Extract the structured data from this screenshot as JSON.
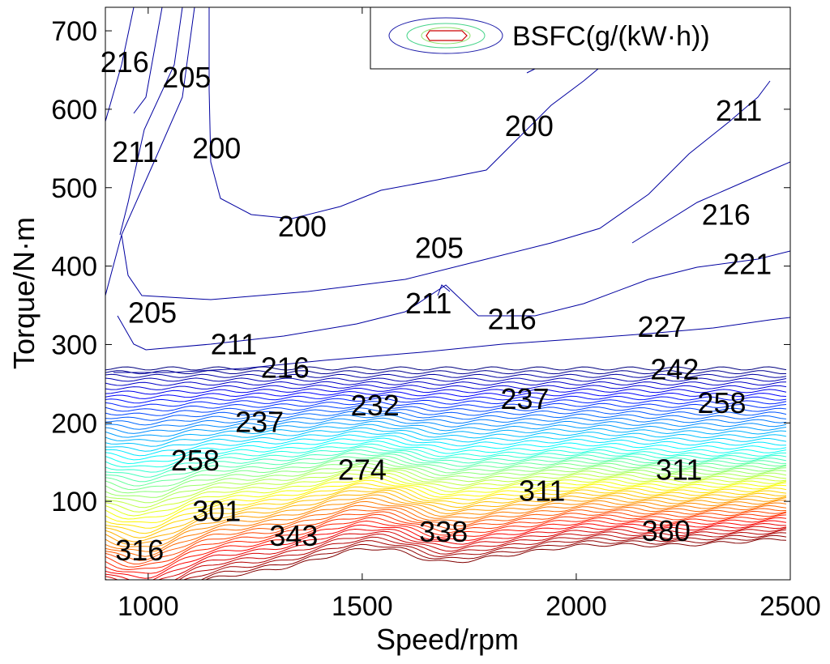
{
  "chart_data": {
    "type": "contour",
    "title": "",
    "xlabel": "Speed/rpm",
    "ylabel": "Torque/N·m",
    "xlim": [
      900,
      2500
    ],
    "ylim": [
      0,
      730
    ],
    "x_ticks": [
      1000,
      1500,
      2000,
      2500
    ],
    "y_ticks": [
      100,
      200,
      300,
      400,
      500,
      600,
      700
    ],
    "grid": false,
    "legend": {
      "position": "top-right",
      "label": "BSFC(g/(kW·h))"
    },
    "contour_labels": [
      {
        "value": "216",
        "speed": 945,
        "torque": 660
      },
      {
        "value": "205",
        "speed": 1090,
        "torque": 640
      },
      {
        "value": "211",
        "speed": 970,
        "torque": 545
      },
      {
        "value": "200",
        "speed": 1160,
        "torque": 550
      },
      {
        "value": "200",
        "speed": 1360,
        "torque": 450
      },
      {
        "value": "200",
        "speed": 1890,
        "torque": 578
      },
      {
        "value": "211",
        "speed": 2380,
        "torque": 598
      },
      {
        "value": "216",
        "speed": 2350,
        "torque": 465
      },
      {
        "value": "205",
        "speed": 1680,
        "torque": 423
      },
      {
        "value": "221",
        "speed": 2400,
        "torque": 402
      },
      {
        "value": "205",
        "speed": 1010,
        "torque": 340
      },
      {
        "value": "211",
        "speed": 1655,
        "torque": 352
      },
      {
        "value": "216",
        "speed": 1850,
        "torque": 332
      },
      {
        "value": "227",
        "speed": 2200,
        "torque": 322
      },
      {
        "value": "211",
        "speed": 1200,
        "torque": 300
      },
      {
        "value": "216",
        "speed": 1320,
        "torque": 270
      },
      {
        "value": "242",
        "speed": 2230,
        "torque": 268
      },
      {
        "value": "232",
        "speed": 1530,
        "torque": 222
      },
      {
        "value": "237",
        "speed": 1880,
        "torque": 230
      },
      {
        "value": "258",
        "speed": 2340,
        "torque": 225
      },
      {
        "value": "237",
        "speed": 1260,
        "torque": 201
      },
      {
        "value": "274",
        "speed": 1500,
        "torque": 140
      },
      {
        "value": "258",
        "speed": 1110,
        "torque": 152
      },
      {
        "value": "311",
        "speed": 2240,
        "torque": 140
      },
      {
        "value": "311",
        "speed": 1920,
        "torque": 113
      },
      {
        "value": "301",
        "speed": 1160,
        "torque": 87
      },
      {
        "value": "343",
        "speed": 1340,
        "torque": 56
      },
      {
        "value": "338",
        "speed": 1690,
        "torque": 61
      },
      {
        "value": "380",
        "speed": 2210,
        "torque": 62
      },
      {
        "value": "316",
        "speed": 980,
        "torque": 37
      }
    ]
  }
}
